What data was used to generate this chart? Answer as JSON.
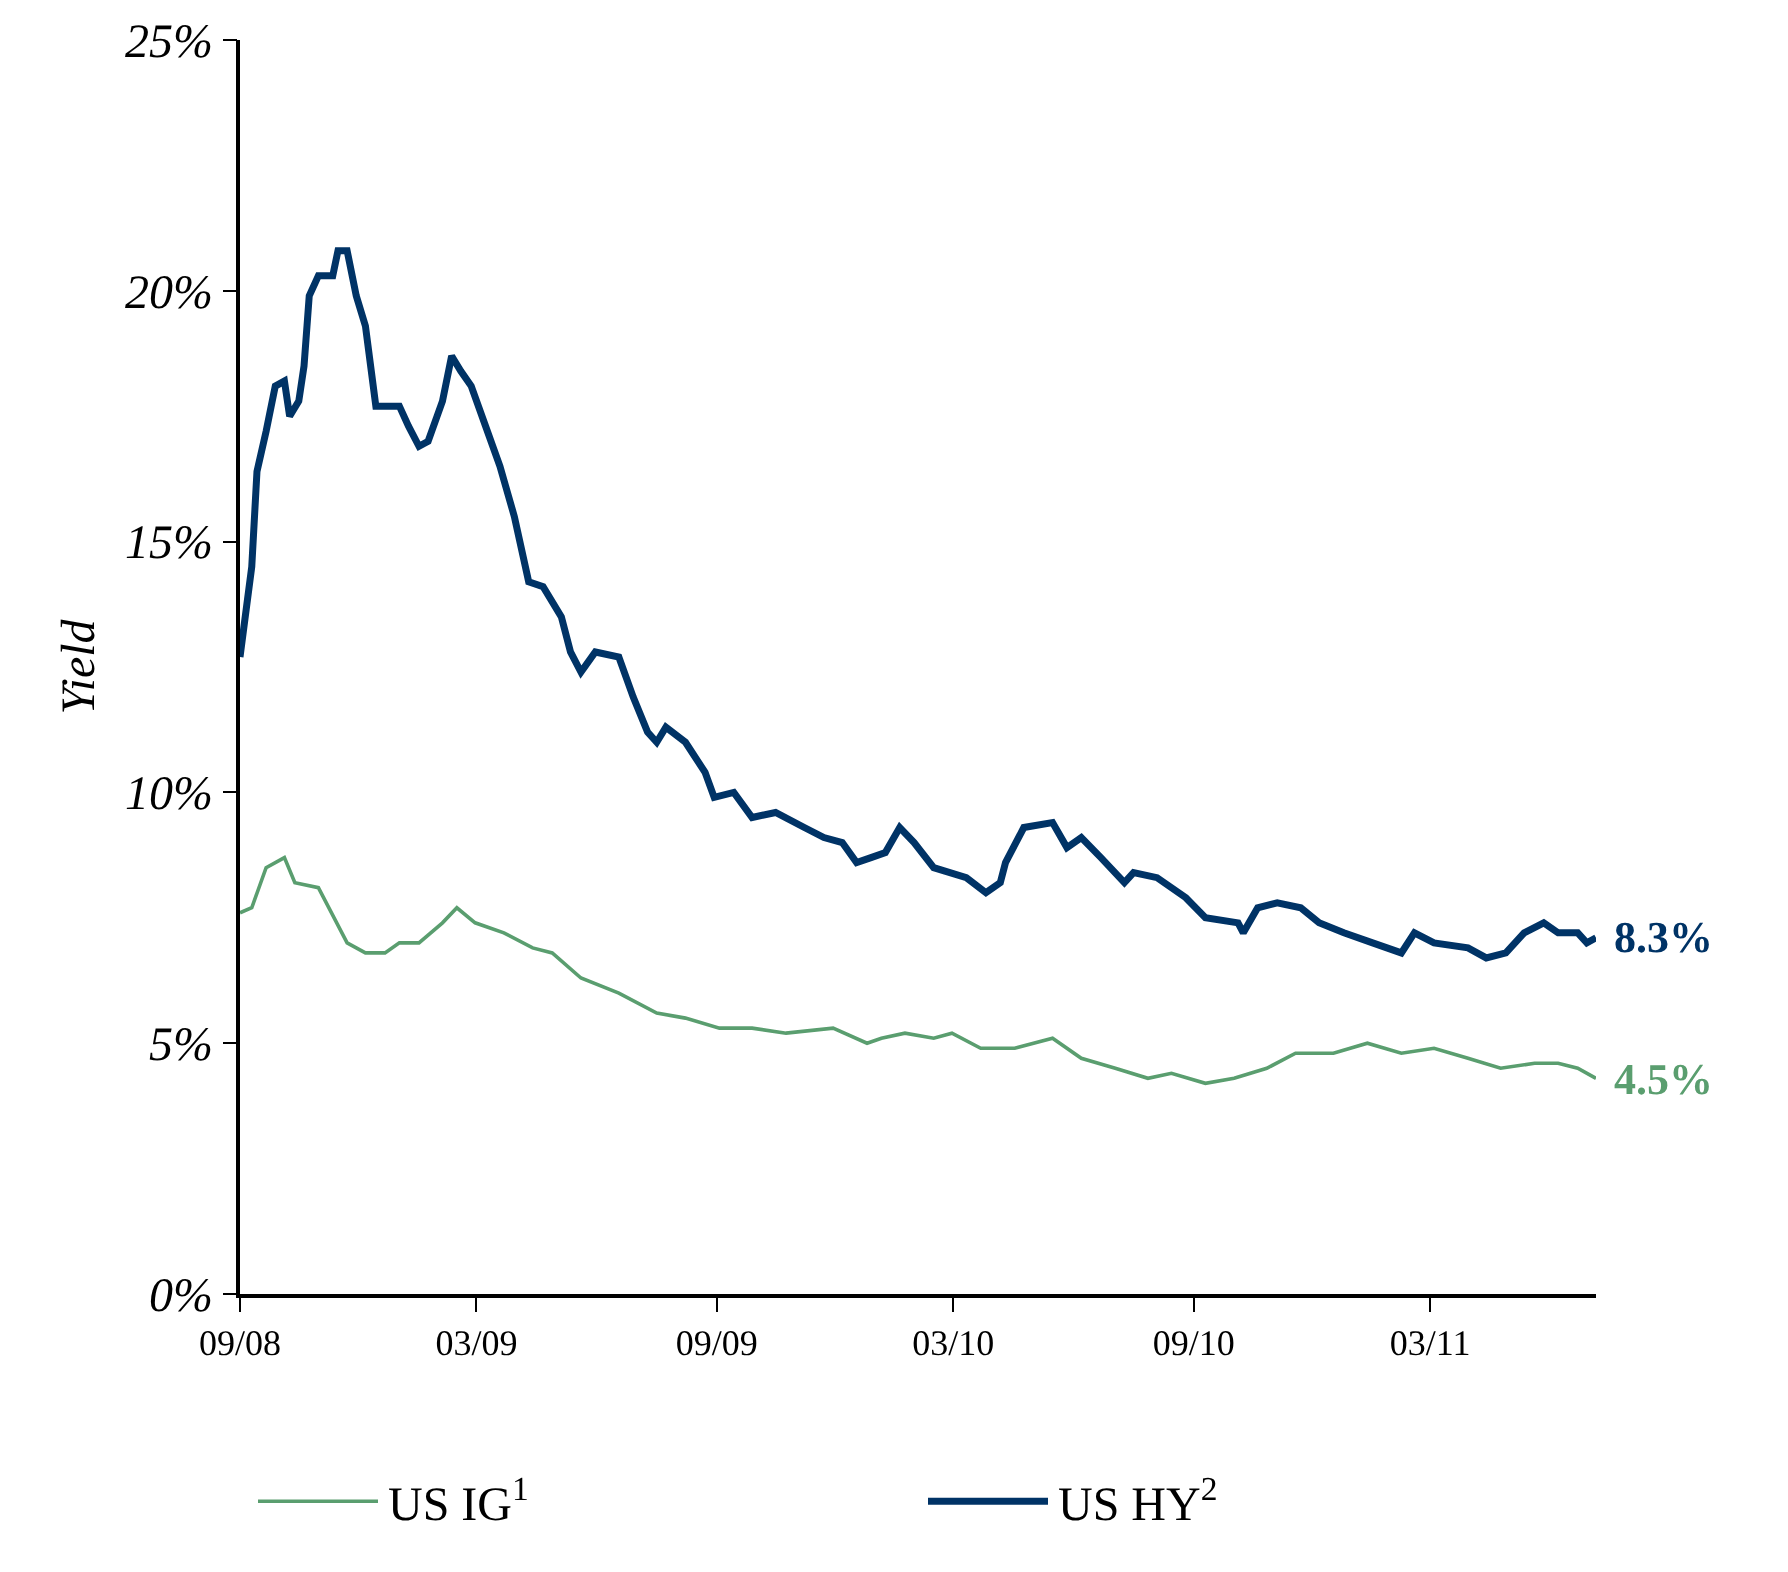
{
  "chart_data": {
    "type": "line",
    "ylabel": "Yield",
    "xlim": [
      "2008-09-01",
      "2011-07-06"
    ],
    "xticks": [
      {
        "value": "2008-09-01",
        "label": "09/08"
      },
      {
        "value": "2009-03-01",
        "label": "03/09"
      },
      {
        "value": "2009-09-01",
        "label": "09/09"
      },
      {
        "value": "2010-03-01",
        "label": "03/10"
      },
      {
        "value": "2010-09-01",
        "label": "09/10"
      },
      {
        "value": "2011-03-01",
        "label": "03/11"
      }
    ],
    "ylim": [
      0,
      25
    ],
    "yticks": [
      {
        "value": 0,
        "label": "0%"
      },
      {
        "value": 5,
        "label": "5%"
      },
      {
        "value": 10,
        "label": "10%"
      },
      {
        "value": 15,
        "label": "15%"
      },
      {
        "value": 20,
        "label": "20%"
      },
      {
        "value": 25,
        "label": "25%"
      }
    ],
    "grid": false,
    "legend": "bottom",
    "marker": "none",
    "line_style": "solid",
    "series": [
      {
        "name": "US IG$^{1}$",
        "color": "#5a9e6f",
        "x": [
          "2008-09-01",
          "2008-09-10",
          "2008-09-21",
          "2008-10-05",
          "2008-10-13",
          "2008-10-31",
          "2008-11-22",
          "2008-12-06",
          "2008-12-21",
          "2009-01-01",
          "2009-01-16",
          "2009-02-03",
          "2009-02-14",
          "2009-02-28",
          "2009-03-22",
          "2009-04-13",
          "2009-04-28",
          "2009-05-20",
          "2009-06-18",
          "2009-07-17",
          "2009-08-08",
          "2009-09-03",
          "2009-09-28",
          "2009-10-24",
          "2009-11-29",
          "2009-12-25",
          "2010-01-05",
          "2010-01-23",
          "2010-02-14",
          "2010-02-28",
          "2010-03-22",
          "2010-04-17",
          "2010-05-16",
          "2010-06-07",
          "2010-07-03",
          "2010-07-28",
          "2010-08-15",
          "2010-09-10",
          "2010-10-02",
          "2010-10-27",
          "2010-11-18",
          "2010-12-17",
          "2011-01-12",
          "2011-02-07",
          "2011-03-04",
          "2011-03-30",
          "2011-04-24",
          "2011-05-20",
          "2011-06-07",
          "2011-06-22",
          "2011-07-06"
        ],
        "values": [
          7.6,
          7.7,
          8.5,
          8.7,
          8.2,
          8.1,
          7.0,
          6.8,
          6.8,
          7.0,
          7.0,
          7.4,
          7.7,
          7.4,
          7.2,
          6.9,
          6.8,
          6.3,
          6.0,
          5.6,
          5.5,
          5.3,
          5.3,
          5.2,
          5.3,
          5.0,
          5.1,
          5.2,
          5.1,
          5.2,
          4.9,
          4.9,
          5.1,
          4.7,
          4.5,
          4.3,
          4.4,
          4.2,
          4.3,
          4.5,
          4.8,
          4.8,
          5.0,
          4.8,
          4.9,
          4.7,
          4.5,
          4.6,
          4.6,
          4.5,
          4.3
        ]
      },
      {
        "name": "US HY$^{2}$",
        "color": "#003366",
        "x": [
          "2008-09-01",
          "2008-09-10",
          "2008-09-14",
          "2008-09-21",
          "2008-09-28",
          "2008-10-05",
          "2008-10-09",
          "2008-10-16",
          "2008-10-20",
          "2008-10-24",
          "2008-10-31",
          "2008-11-11",
          "2008-11-15",
          "2008-11-22",
          "2008-11-29",
          "2008-12-06",
          "2008-12-14",
          "2008-12-21",
          "2009-01-01",
          "2009-01-08",
          "2009-01-16",
          "2009-01-23",
          "2009-02-03",
          "2009-02-10",
          "2009-02-17",
          "2009-02-25",
          "2009-03-08",
          "2009-03-19",
          "2009-03-30",
          "2009-04-10",
          "2009-04-21",
          "2009-05-05",
          "2009-05-12",
          "2009-05-20",
          "2009-05-31",
          "2009-06-18",
          "2009-06-29",
          "2009-07-10",
          "2009-07-17",
          "2009-07-24",
          "2009-08-08",
          "2009-08-23",
          "2009-08-30",
          "2009-09-14",
          "2009-09-28",
          "2009-10-16",
          "2009-11-07",
          "2009-11-22",
          "2009-12-06",
          "2009-12-17",
          "2009-12-28",
          "2010-01-08",
          "2010-01-19",
          "2010-01-30",
          "2010-02-14",
          "2010-03-11",
          "2010-03-26",
          "2010-04-06",
          "2010-04-10",
          "2010-04-24",
          "2010-05-16",
          "2010-05-27",
          "2010-06-07",
          "2010-06-22",
          "2010-07-10",
          "2010-07-17",
          "2010-08-04",
          "2010-08-26",
          "2010-09-10",
          "2010-10-05",
          "2010-10-09",
          "2010-10-20",
          "2010-11-04",
          "2010-11-22",
          "2010-12-06",
          "2010-12-25",
          "2011-01-16",
          "2011-02-07",
          "2011-02-17",
          "2011-03-04",
          "2011-03-30",
          "2011-04-13",
          "2011-04-28",
          "2011-05-12",
          "2011-05-27",
          "2011-06-07",
          "2011-06-22",
          "2011-06-29",
          "2011-07-06"
        ],
        "values": [
          12.7,
          14.5,
          16.4,
          17.2,
          18.1,
          18.2,
          17.5,
          17.8,
          18.5,
          19.9,
          20.3,
          20.3,
          20.8,
          20.8,
          19.9,
          19.3,
          17.7,
          17.7,
          17.7,
          17.3,
          16.9,
          17.0,
          17.8,
          18.7,
          18.4,
          18.1,
          17.3,
          16.5,
          15.5,
          14.2,
          14.1,
          13.5,
          12.8,
          12.4,
          12.8,
          12.7,
          11.9,
          11.2,
          11.0,
          11.3,
          11.0,
          10.4,
          9.9,
          10.0,
          9.5,
          9.6,
          9.3,
          9.1,
          9.0,
          8.6,
          8.7,
          8.8,
          9.3,
          9.0,
          8.5,
          8.3,
          8.0,
          8.2,
          8.6,
          9.3,
          9.4,
          8.9,
          9.1,
          8.7,
          8.2,
          8.4,
          8.3,
          7.9,
          7.5,
          7.4,
          7.2,
          7.7,
          7.8,
          7.7,
          7.4,
          7.2,
          7.0,
          6.8,
          7.2,
          7.0,
          6.9,
          6.7,
          6.8,
          7.2,
          7.4,
          7.2,
          7.2,
          7.0,
          7.1
        ]
      }
    ],
    "annotations": [
      "8.3%",
      "4.5%"
    ]
  }
}
